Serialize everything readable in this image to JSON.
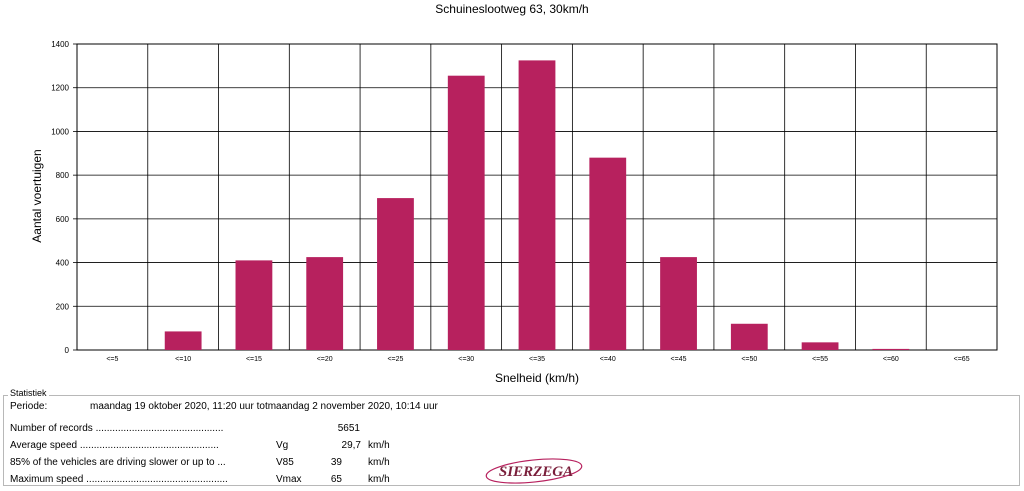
{
  "chart_data": {
    "type": "bar",
    "title": "Schuineslootweg 63, 30km/h",
    "xlabel": "Snelheid (km/h)",
    "ylabel": "Aantal voertuigen",
    "categories": [
      "<=5",
      "<=10",
      "<=15",
      "<=20",
      "<=25",
      "<=30",
      "<=35",
      "<=40",
      "<=45",
      "<=50",
      "<=55",
      "<=60",
      "<=65"
    ],
    "values": [
      0,
      85,
      410,
      425,
      695,
      1255,
      1325,
      880,
      425,
      120,
      35,
      5,
      0
    ],
    "ylim": [
      0,
      1400
    ],
    "yticks": [
      0,
      200,
      400,
      600,
      800,
      1000,
      1200,
      1400
    ],
    "grid": true,
    "bar_color": "#b7215e"
  },
  "stats": {
    "legend": "Statistiek",
    "periode_label": "Periode:",
    "periode_value": "maandag 19 oktober 2020, 11:20 uur totmaandag 2 november 2020, 10:14 uur",
    "rows": [
      {
        "label": "Number of records ..............................................",
        "symbol": "",
        "value": "5651",
        "unit": ""
      },
      {
        "label": "Average speed ..................................................",
        "symbol": "Vg",
        "value": "29,7",
        "unit": "km/h"
      },
      {
        "label": "85% of the vehicles are driving slower or up to ...",
        "symbol": "V85",
        "value": "39",
        "unit": "km/h"
      },
      {
        "label": "Maximum speed ...................................................",
        "symbol": "Vmax",
        "value": "65",
        "unit": "km/h"
      }
    ],
    "logo_text": "SIERZEGA"
  }
}
